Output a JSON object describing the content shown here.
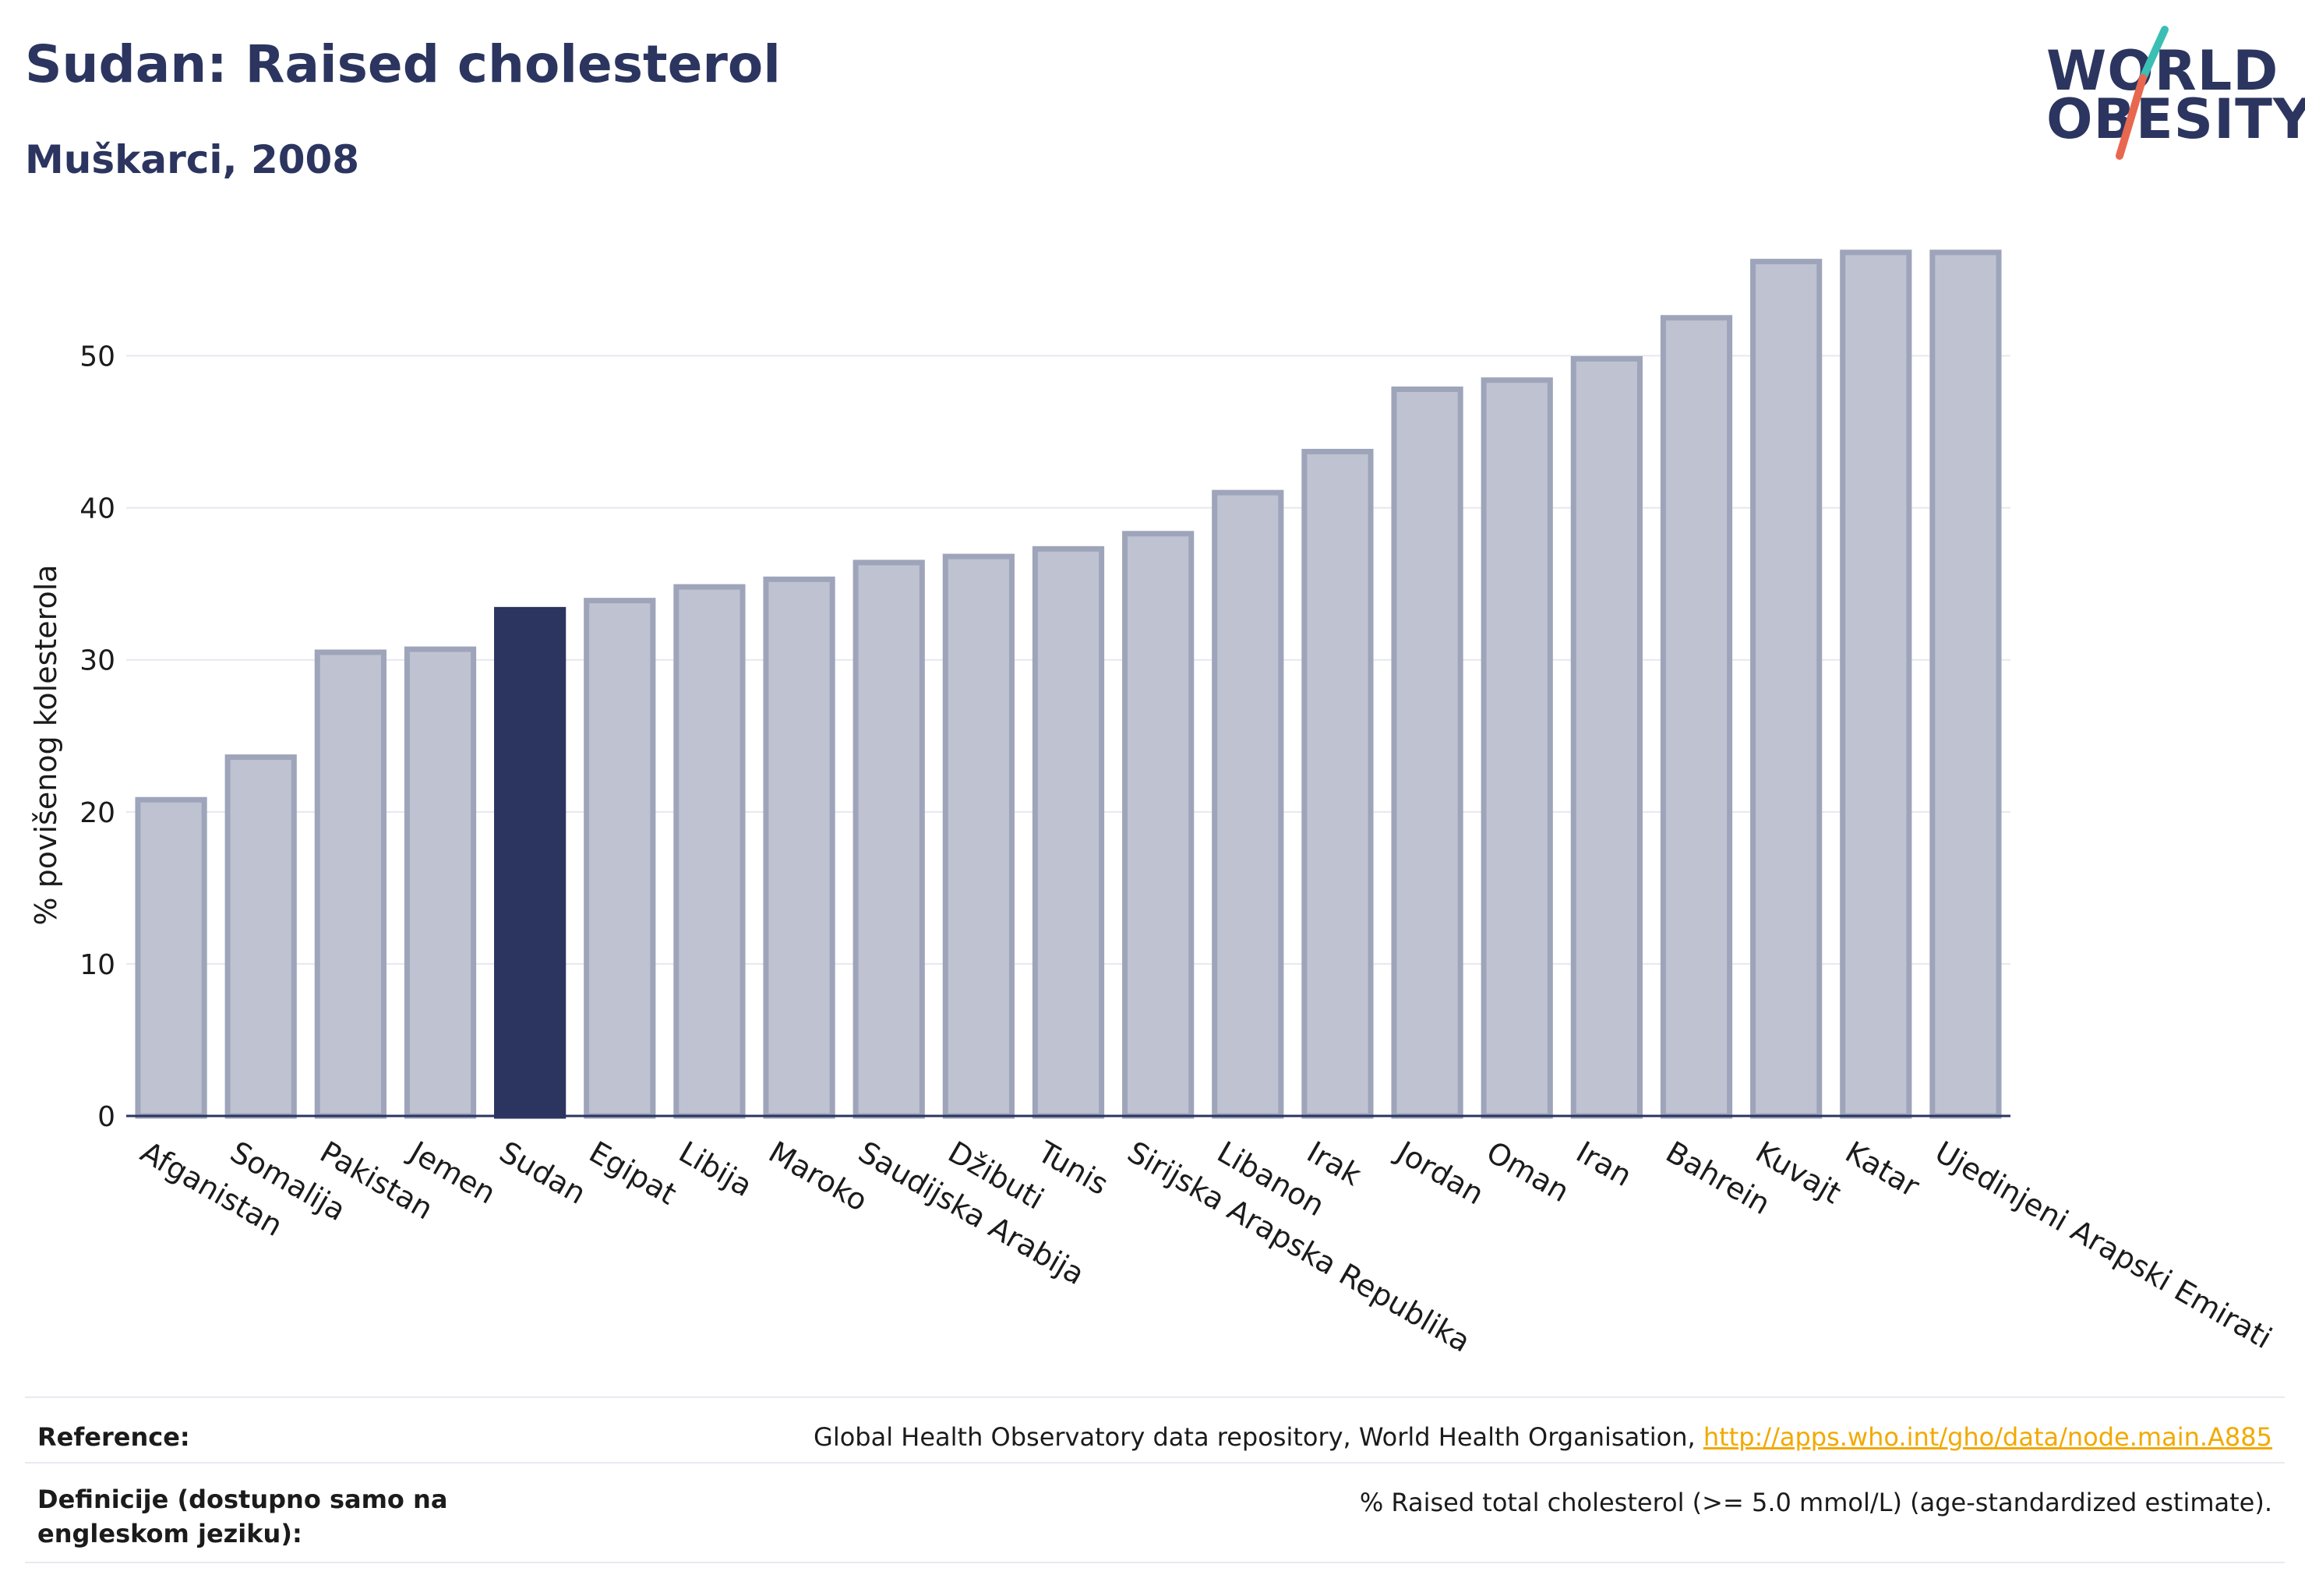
{
  "header": {
    "title": "Sudan: Raised cholesterol",
    "subtitle": "Muškarci, 2008"
  },
  "logo": {
    "line1": "WORLD",
    "line2": "OBESITY",
    "accent_teal": "#3bbfb5",
    "accent_red": "#e8674f"
  },
  "chart_data": {
    "type": "bar",
    "categories": [
      "Afganistan",
      "Somalija",
      "Pakistan",
      "Jemen",
      "Sudan",
      "Egipat",
      "Libija",
      "Maroko",
      "Saudijska Arabija",
      "Džibuti",
      "Tunis",
      "Sirijska Arapska Republika",
      "Libanon",
      "Irak",
      "Jordan",
      "Oman",
      "Iran",
      "Bahrein",
      "Kuvajt",
      "Katar",
      "Ujedinjeni Arapski Emirati"
    ],
    "values": [
      20.8,
      23.6,
      30.5,
      30.7,
      33.3,
      33.9,
      34.8,
      35.3,
      36.4,
      36.8,
      37.3,
      38.3,
      41.0,
      43.7,
      47.8,
      48.4,
      49.8,
      52.5,
      56.2,
      56.8,
      56.8
    ],
    "highlight": "Sudan",
    "ylabel": "% povišenog kolesterola",
    "xlabel": "",
    "ylim": [
      0,
      57
    ],
    "yticks": [
      0,
      10,
      20,
      30,
      40,
      50
    ],
    "grid": true,
    "colors": {
      "bar": "#bfc3d1",
      "bar_edge": "#9ea4ba",
      "highlight": "#2b355f",
      "grid": "#e6e8ef",
      "axis": "#2b355f"
    }
  },
  "footer": {
    "reference_label": "Reference:",
    "reference_text": "Global Health Observatory data repository, World Health Organisation, ",
    "reference_link": "http://apps.who.int/gho/data/node.main.A885",
    "definition_label": "Definicije (dostupno samo na engleskom jeziku):",
    "definition_text": "% Raised total cholesterol (>= 5.0 mmol/L) (age-standardized estimate)."
  }
}
